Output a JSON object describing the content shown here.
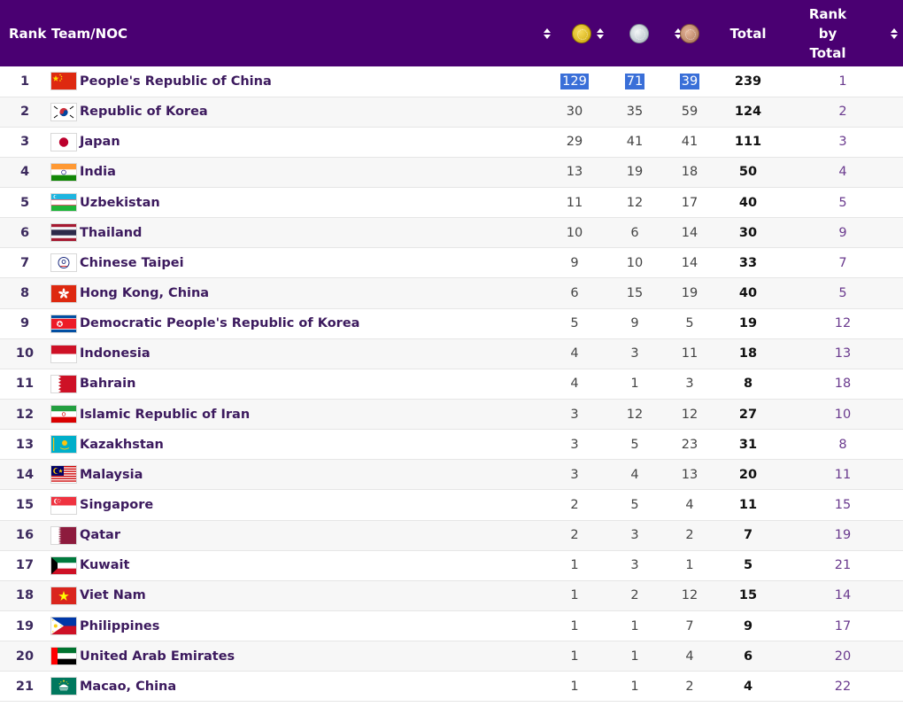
{
  "header": {
    "rank": "Rank",
    "team": "Team/NOC",
    "gold_icon": "gold-medal-icon",
    "silver_icon": "silver-medal-icon",
    "bronze_icon": "bronze-medal-icon",
    "total": "Total",
    "rank_by_total_line1": "Rank",
    "rank_by_total_line2": "by",
    "rank_by_total_line3": "Total"
  },
  "colors": {
    "header_bg": "#4a0072",
    "selection": "#3a6fd8",
    "team_text": "#3c1a5e"
  },
  "rows": [
    {
      "rank": "1",
      "flag": "china",
      "team": "People's Republic of China",
      "gold": "129",
      "silver": "71",
      "bronze": "39",
      "total": "239",
      "rank_by_total": "1"
    },
    {
      "rank": "2",
      "flag": "korea",
      "team": "Republic of Korea",
      "gold": "30",
      "silver": "35",
      "bronze": "59",
      "total": "124",
      "rank_by_total": "2"
    },
    {
      "rank": "3",
      "flag": "japan",
      "team": "Japan",
      "gold": "29",
      "silver": "41",
      "bronze": "41",
      "total": "111",
      "rank_by_total": "3"
    },
    {
      "rank": "4",
      "flag": "india",
      "team": "India",
      "gold": "13",
      "silver": "19",
      "bronze": "18",
      "total": "50",
      "rank_by_total": "4"
    },
    {
      "rank": "5",
      "flag": "uzbekistan",
      "team": "Uzbekistan",
      "gold": "11",
      "silver": "12",
      "bronze": "17",
      "total": "40",
      "rank_by_total": "5"
    },
    {
      "rank": "6",
      "flag": "thailand",
      "team": "Thailand",
      "gold": "10",
      "silver": "6",
      "bronze": "14",
      "total": "30",
      "rank_by_total": "9"
    },
    {
      "rank": "7",
      "flag": "chinese-taipei",
      "team": "Chinese Taipei",
      "gold": "9",
      "silver": "10",
      "bronze": "14",
      "total": "33",
      "rank_by_total": "7"
    },
    {
      "rank": "8",
      "flag": "hong-kong",
      "team": "Hong Kong, China",
      "gold": "6",
      "silver": "15",
      "bronze": "19",
      "total": "40",
      "rank_by_total": "5"
    },
    {
      "rank": "9",
      "flag": "dpr-korea",
      "team": "Democratic People's Republic of Korea",
      "gold": "5",
      "silver": "9",
      "bronze": "5",
      "total": "19",
      "rank_by_total": "12"
    },
    {
      "rank": "10",
      "flag": "indonesia",
      "team": "Indonesia",
      "gold": "4",
      "silver": "3",
      "bronze": "11",
      "total": "18",
      "rank_by_total": "13"
    },
    {
      "rank": "11",
      "flag": "bahrain",
      "team": "Bahrain",
      "gold": "4",
      "silver": "1",
      "bronze": "3",
      "total": "8",
      "rank_by_total": "18"
    },
    {
      "rank": "12",
      "flag": "iran",
      "team": "Islamic Republic of Iran",
      "gold": "3",
      "silver": "12",
      "bronze": "12",
      "total": "27",
      "rank_by_total": "10"
    },
    {
      "rank": "13",
      "flag": "kazakhstan",
      "team": "Kazakhstan",
      "gold": "3",
      "silver": "5",
      "bronze": "23",
      "total": "31",
      "rank_by_total": "8"
    },
    {
      "rank": "14",
      "flag": "malaysia",
      "team": "Malaysia",
      "gold": "3",
      "silver": "4",
      "bronze": "13",
      "total": "20",
      "rank_by_total": "11"
    },
    {
      "rank": "15",
      "flag": "singapore",
      "team": "Singapore",
      "gold": "2",
      "silver": "5",
      "bronze": "4",
      "total": "11",
      "rank_by_total": "15"
    },
    {
      "rank": "16",
      "flag": "qatar",
      "team": "Qatar",
      "gold": "2",
      "silver": "3",
      "bronze": "2",
      "total": "7",
      "rank_by_total": "19"
    },
    {
      "rank": "17",
      "flag": "kuwait",
      "team": "Kuwait",
      "gold": "1",
      "silver": "3",
      "bronze": "1",
      "total": "5",
      "rank_by_total": "21"
    },
    {
      "rank": "18",
      "flag": "viet-nam",
      "team": "Viet Nam",
      "gold": "1",
      "silver": "2",
      "bronze": "12",
      "total": "15",
      "rank_by_total": "14"
    },
    {
      "rank": "19",
      "flag": "philippines",
      "team": "Philippines",
      "gold": "1",
      "silver": "1",
      "bronze": "7",
      "total": "9",
      "rank_by_total": "17"
    },
    {
      "rank": "20",
      "flag": "uae",
      "team": "United Arab Emirates",
      "gold": "1",
      "silver": "1",
      "bronze": "4",
      "total": "6",
      "rank_by_total": "20"
    },
    {
      "rank": "21",
      "flag": "macao",
      "team": "Macao, China",
      "gold": "1",
      "silver": "1",
      "bronze": "2",
      "total": "4",
      "rank_by_total": "22"
    }
  ]
}
